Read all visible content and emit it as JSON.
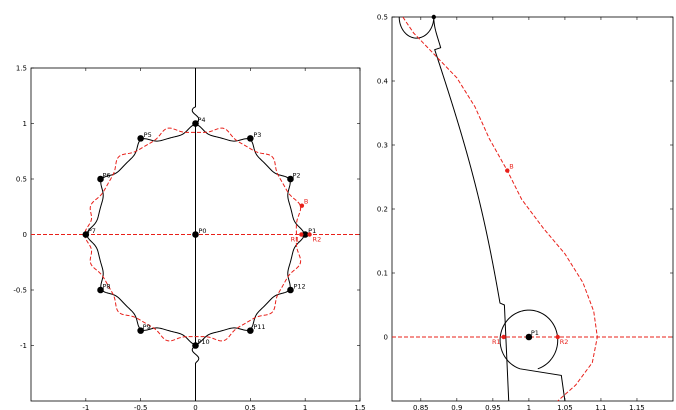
{
  "chart_data": [
    {
      "type": "line",
      "panel": "left",
      "title": "",
      "xlabel": "",
      "ylabel": "",
      "xlim": [
        -1.5,
        1.5
      ],
      "ylim": [
        -1.5,
        1.5
      ],
      "x_ticks": [
        -1,
        -0.5,
        0,
        0.5,
        1,
        1.5
      ],
      "x_tick_labels": [
        "-1",
        "-0.5",
        "0",
        "0.5",
        "1",
        "1.5"
      ],
      "y_ticks": [
        -1,
        -0.5,
        0,
        0.5,
        1,
        1.5
      ],
      "y_tick_labels": [
        "-1",
        "-0.5",
        "0",
        "0.5",
        "1",
        "1.5"
      ],
      "grid": false,
      "colors": {
        "black_curve": "#000000",
        "red_curve": "#e8201a"
      },
      "points": [
        {
          "name": "P0",
          "x": 0,
          "y": 0,
          "color": "#000000"
        },
        {
          "name": "P1",
          "x": 1.0,
          "y": 0.0,
          "color": "#000000"
        },
        {
          "name": "P2",
          "x": 0.866,
          "y": 0.5,
          "color": "#000000"
        },
        {
          "name": "P3",
          "x": 0.5,
          "y": 0.866,
          "color": "#000000"
        },
        {
          "name": "P4",
          "x": 0,
          "y": 1.0,
          "color": "#000000"
        },
        {
          "name": "P5",
          "x": -0.5,
          "y": 0.866,
          "color": "#000000"
        },
        {
          "name": "P6",
          "x": -0.866,
          "y": 0.5,
          "color": "#000000"
        },
        {
          "name": "P7",
          "x": -1.0,
          "y": 0.0,
          "color": "#000000"
        },
        {
          "name": "P8",
          "x": -0.866,
          "y": -0.5,
          "color": "#000000"
        },
        {
          "name": "P9",
          "x": -0.5,
          "y": -0.866,
          "color": "#000000"
        },
        {
          "name": "P10",
          "x": 0,
          "y": -1.0,
          "color": "#000000"
        },
        {
          "name": "P11",
          "x": 0.5,
          "y": -0.866,
          "color": "#000000"
        },
        {
          "name": "P12",
          "x": 0.866,
          "y": -0.5,
          "color": "#000000"
        },
        {
          "name": "R1",
          "x": 0.965,
          "y": 0.0,
          "color": "#e8201a"
        },
        {
          "name": "R2",
          "x": 1.04,
          "y": 0.0,
          "color": "#e8201a"
        },
        {
          "name": "B",
          "x": 0.97,
          "y": 0.26,
          "color": "#e8201a"
        }
      ]
    },
    {
      "type": "line",
      "panel": "right",
      "title": "",
      "xlabel": "",
      "ylabel": "",
      "xlim": [
        0.81,
        1.2
      ],
      "ylim": [
        -0.1,
        0.5
      ],
      "x_ticks": [
        0.85,
        0.9,
        0.95,
        1,
        1.05,
        1.1,
        1.15
      ],
      "x_tick_labels": [
        "0.85",
        "0.9",
        "0.95",
        "1",
        "1.05",
        "1.1",
        "1.15"
      ],
      "y_ticks": [
        0,
        0.1,
        0.2,
        0.3,
        0.4,
        0.5
      ],
      "y_tick_labels": [
        "0",
        "0.1",
        "0.2",
        "0.3",
        "0.4",
        "0.5"
      ],
      "grid": false,
      "colors": {
        "black_curve": "#000000",
        "red_curve": "#e8201a"
      },
      "points": [
        {
          "name": "P1",
          "x": 1.0,
          "y": 0.0,
          "color": "#000000"
        },
        {
          "name": "R1",
          "x": 0.965,
          "y": 0.0,
          "color": "#e8201a"
        },
        {
          "name": "R2",
          "x": 1.04,
          "y": 0.0,
          "color": "#e8201a"
        },
        {
          "name": "B",
          "x": 0.97,
          "y": 0.26,
          "color": "#e8201a"
        }
      ]
    }
  ]
}
